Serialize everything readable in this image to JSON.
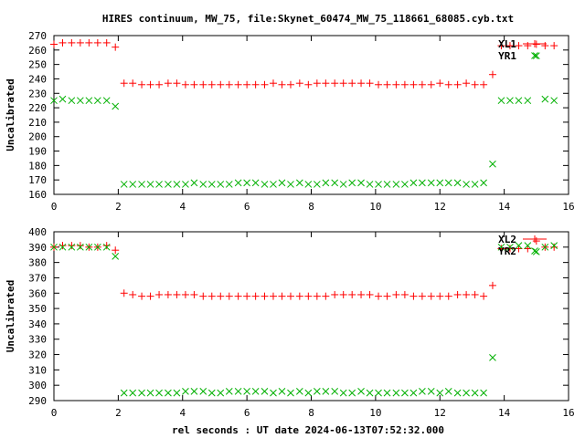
{
  "chart_data": {
    "title": "HIRES continuum, MW_75, file:Skynet_60474_MW_75_118661_68085.cyb.txt",
    "xlabel": "rel seconds : UT date 2024-06-13T07:52:32.000",
    "colors": {
      "red": "#ff0000",
      "green": "#00b000"
    },
    "x": [
      0.0,
      0.27,
      0.55,
      0.82,
      1.09,
      1.36,
      1.64,
      1.91,
      2.18,
      2.45,
      2.73,
      3.0,
      3.27,
      3.55,
      3.82,
      4.09,
      4.36,
      4.64,
      4.91,
      5.18,
      5.45,
      5.73,
      6.0,
      6.27,
      6.55,
      6.82,
      7.09,
      7.36,
      7.64,
      7.91,
      8.18,
      8.45,
      8.73,
      9.0,
      9.27,
      9.55,
      9.82,
      10.09,
      10.36,
      10.64,
      10.91,
      11.18,
      11.45,
      11.73,
      12.0,
      12.27,
      12.55,
      12.82,
      13.09,
      13.36,
      13.64,
      13.91,
      14.18,
      14.45,
      14.73,
      15.0,
      15.27,
      15.55
    ],
    "panels": [
      {
        "type": "scatter",
        "ylabel": "Uncalibrated",
        "xlim": [
          0,
          16
        ],
        "ylim": [
          160,
          270
        ],
        "xticks": [
          0,
          2,
          4,
          6,
          8,
          10,
          12,
          14,
          16
        ],
        "yticks": [
          160,
          170,
          180,
          190,
          200,
          210,
          220,
          230,
          240,
          250,
          260,
          270
        ],
        "series": [
          {
            "name": "XL1",
            "marker": "plus",
            "color": "red",
            "values": [
              264,
              265,
              265,
              265,
              265,
              265,
              265,
              262,
              237,
              237,
              236,
              236,
              236,
              237,
              237,
              236,
              236,
              236,
              236,
              236,
              236,
              236,
              236,
              236,
              236,
              237,
              236,
              236,
              237,
              236,
              237,
              237,
              237,
              237,
              237,
              237,
              237,
              236,
              236,
              236,
              236,
              236,
              236,
              236,
              237,
              236,
              236,
              237,
              236,
              236,
              243,
              263,
              263,
              263,
              263,
              264,
              263,
              263
            ]
          },
          {
            "name": "YR1",
            "marker": "cross",
            "color": "green",
            "values": [
              225,
              226,
              225,
              225,
              225,
              225,
              225,
              221,
              167,
              167,
              167,
              167,
              167,
              167,
              167,
              167,
              168,
              167,
              167,
              167,
              167,
              168,
              168,
              168,
              167,
              167,
              168,
              167,
              168,
              167,
              167,
              168,
              168,
              167,
              168,
              168,
              167,
              167,
              167,
              167,
              167,
              168,
              168,
              168,
              168,
              168,
              168,
              167,
              167,
              168,
              181,
              225,
              225,
              225,
              225,
              256,
              226,
              225
            ]
          }
        ]
      },
      {
        "type": "scatter",
        "ylabel": "Uncalibrated",
        "xlim": [
          0,
          16
        ],
        "ylim": [
          290,
          400
        ],
        "xticks": [
          0,
          2,
          4,
          6,
          8,
          10,
          12,
          14,
          16
        ],
        "yticks": [
          290,
          300,
          310,
          320,
          330,
          340,
          350,
          360,
          370,
          380,
          390,
          400
        ],
        "series": [
          {
            "name": "XL2",
            "marker": "plus",
            "color": "red",
            "values": [
              390,
              391,
              391,
              391,
              390,
              390,
              391,
              388,
              360,
              359,
              358,
              358,
              359,
              359,
              359,
              359,
              359,
              358,
              358,
              358,
              358,
              358,
              358,
              358,
              358,
              358,
              358,
              358,
              358,
              358,
              358,
              358,
              359,
              359,
              359,
              359,
              359,
              358,
              358,
              359,
              359,
              358,
              358,
              358,
              358,
              358,
              359,
              359,
              359,
              358,
              365,
              389,
              389,
              389,
              389,
              394,
              390,
              390
            ]
          },
          {
            "name": "YR2",
            "marker": "cross",
            "color": "green",
            "values": [
              390,
              390,
              390,
              390,
              390,
              390,
              390,
              384,
              295,
              295,
              295,
              295,
              295,
              295,
              295,
              296,
              296,
              296,
              295,
              295,
              296,
              296,
              296,
              296,
              296,
              295,
              296,
              295,
              296,
              295,
              296,
              296,
              296,
              295,
              295,
              296,
              295,
              295,
              295,
              295,
              295,
              295,
              296,
              296,
              295,
              296,
              295,
              295,
              295,
              295,
              318,
              390,
              390,
              391,
              391,
              387,
              390,
              391
            ]
          }
        ]
      }
    ]
  }
}
